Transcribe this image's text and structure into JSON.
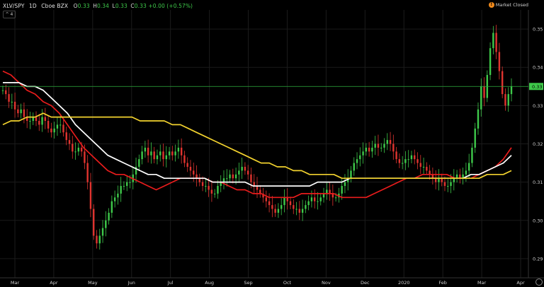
{
  "header": {
    "symbol": "XLV/SPY",
    "interval": "1D",
    "exchange": "Cboe BZX",
    "open_label": "O",
    "open_value": "0.33",
    "high_label": "H",
    "high_value": "0.34",
    "low_label": "L",
    "low_value": "0.33",
    "close_label": "C",
    "close_value": "0.33",
    "change": "+0.00 (+0.57%)",
    "collapse_label": "^ 4"
  },
  "market_status": {
    "icon": "!",
    "text": "Market Closed"
  },
  "colors": {
    "background": "#000000",
    "grid": "#1b1b1b",
    "axis_text": "#cfcfcf",
    "up": "#3ec94a",
    "down": "#e0342f",
    "ma_red": "#e81c1c",
    "ma_white": "#ffffff",
    "ma_yellow": "#f2d22e",
    "price_line": "#2fae3c",
    "price_label_bg": "#3ec94a"
  },
  "chart_data": {
    "type": "candlestick",
    "x_ticks": [
      "Mar",
      "Apr",
      "May",
      "Jun",
      "Jul",
      "Aug",
      "Sep",
      "Oct",
      "Nov",
      "Dec",
      "2020",
      "Feb",
      "Mar",
      "Apr"
    ],
    "y_ticks": [
      "0.35",
      "0.34",
      "0.33",
      "0.32",
      "0.31",
      "0.30",
      "0.29"
    ],
    "ylim": [
      0.285,
      0.355
    ],
    "grid": true,
    "current_price": "0.33",
    "closes": [
      0.334,
      0.333,
      0.331,
      0.331,
      0.329,
      0.328,
      0.329,
      0.327,
      0.326,
      0.326,
      0.327,
      0.326,
      0.325,
      0.327,
      0.326,
      0.324,
      0.323,
      0.324,
      0.325,
      0.325,
      0.323,
      0.321,
      0.32,
      0.318,
      0.318,
      0.319,
      0.318,
      0.315,
      0.31,
      0.303,
      0.296,
      0.294,
      0.296,
      0.298,
      0.3,
      0.302,
      0.305,
      0.306,
      0.307,
      0.309,
      0.309,
      0.31,
      0.31,
      0.312,
      0.314,
      0.316,
      0.318,
      0.319,
      0.317,
      0.318,
      0.316,
      0.317,
      0.318,
      0.316,
      0.317,
      0.318,
      0.317,
      0.318,
      0.319,
      0.317,
      0.315,
      0.314,
      0.313,
      0.312,
      0.311,
      0.31,
      0.309,
      0.309,
      0.308,
      0.307,
      0.307,
      0.309,
      0.31,
      0.311,
      0.311,
      0.312,
      0.311,
      0.312,
      0.313,
      0.314,
      0.313,
      0.312,
      0.31,
      0.309,
      0.308,
      0.307,
      0.306,
      0.305,
      0.304,
      0.303,
      0.302,
      0.303,
      0.304,
      0.306,
      0.305,
      0.304,
      0.303,
      0.303,
      0.302,
      0.303,
      0.304,
      0.305,
      0.306,
      0.305,
      0.305,
      0.306,
      0.307,
      0.308,
      0.307,
      0.306,
      0.306,
      0.307,
      0.309,
      0.31,
      0.311,
      0.313,
      0.315,
      0.316,
      0.317,
      0.318,
      0.319,
      0.318,
      0.319,
      0.32,
      0.319,
      0.319,
      0.32,
      0.321,
      0.32,
      0.318,
      0.316,
      0.315,
      0.315,
      0.316,
      0.316,
      0.317,
      0.316,
      0.315,
      0.314,
      0.314,
      0.313,
      0.312,
      0.311,
      0.31,
      0.311,
      0.31,
      0.309,
      0.309,
      0.31,
      0.311,
      0.312,
      0.311,
      0.312,
      0.313,
      0.315,
      0.319,
      0.324,
      0.329,
      0.335,
      0.332,
      0.338,
      0.345,
      0.349,
      0.344,
      0.339,
      0.333,
      0.33,
      0.333,
      0.335
    ],
    "series": [
      {
        "name": "",
        "color": "#e81c1c",
        "values": [
          0.339,
          0.338,
          0.336,
          0.334,
          0.333,
          0.331,
          0.33,
          0.328,
          0.325,
          0.322,
          0.319,
          0.317,
          0.315,
          0.313,
          0.312,
          0.312,
          0.311,
          0.31,
          0.309,
          0.308,
          0.309,
          0.31,
          0.311,
          0.311,
          0.311,
          0.311,
          0.31,
          0.31,
          0.309,
          0.308,
          0.308,
          0.307,
          0.307,
          0.306,
          0.306,
          0.306,
          0.306,
          0.307,
          0.307,
          0.307,
          0.307,
          0.307,
          0.306,
          0.306,
          0.306,
          0.306,
          0.307,
          0.308,
          0.309,
          0.31,
          0.311,
          0.311,
          0.312,
          0.312,
          0.312,
          0.312,
          0.311,
          0.311,
          0.311,
          0.312,
          0.313,
          0.314,
          0.316,
          0.319
        ]
      },
      {
        "name": "",
        "color": "#ffffff",
        "values": [
          0.336,
          0.336,
          0.336,
          0.335,
          0.335,
          0.334,
          0.332,
          0.33,
          0.328,
          0.325,
          0.323,
          0.321,
          0.319,
          0.317,
          0.316,
          0.315,
          0.314,
          0.313,
          0.312,
          0.312,
          0.311,
          0.311,
          0.311,
          0.311,
          0.311,
          0.311,
          0.31,
          0.31,
          0.31,
          0.31,
          0.31,
          0.309,
          0.309,
          0.309,
          0.309,
          0.309,
          0.309,
          0.309,
          0.309,
          0.31,
          0.31,
          0.31,
          0.31,
          0.311,
          0.311,
          0.311,
          0.311,
          0.311,
          0.311,
          0.311,
          0.311,
          0.311,
          0.311,
          0.311,
          0.311,
          0.311,
          0.311,
          0.311,
          0.312,
          0.312,
          0.313,
          0.314,
          0.315,
          0.317
        ]
      },
      {
        "name": "",
        "color": "#f2d22e",
        "values": [
          0.325,
          0.326,
          0.326,
          0.327,
          0.327,
          0.328,
          0.327,
          0.327,
          0.327,
          0.327,
          0.327,
          0.327,
          0.327,
          0.327,
          0.327,
          0.327,
          0.327,
          0.326,
          0.326,
          0.326,
          0.326,
          0.325,
          0.325,
          0.324,
          0.323,
          0.322,
          0.321,
          0.32,
          0.319,
          0.318,
          0.317,
          0.316,
          0.315,
          0.315,
          0.314,
          0.314,
          0.313,
          0.313,
          0.312,
          0.312,
          0.312,
          0.312,
          0.311,
          0.311,
          0.311,
          0.311,
          0.311,
          0.311,
          0.311,
          0.311,
          0.311,
          0.311,
          0.311,
          0.311,
          0.311,
          0.311,
          0.311,
          0.311,
          0.311,
          0.311,
          0.312,
          0.312,
          0.312,
          0.313
        ]
      }
    ]
  }
}
